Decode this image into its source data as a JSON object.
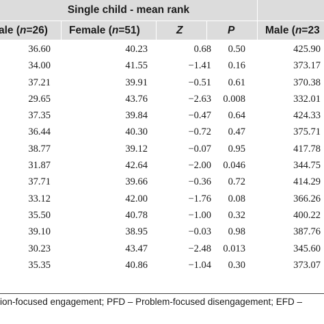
{
  "header": {
    "group_title": "Single child - mean rank",
    "columns": [
      "ale (n=26)",
      "Female (n=51)",
      "Z",
      "P",
      "Male (n=23"
    ]
  },
  "rows": [
    [
      "36.60",
      "40.23",
      "0.68",
      "0.50",
      "425.90"
    ],
    [
      "34.00",
      "41.55",
      "−1.41",
      "0.16",
      "373.17"
    ],
    [
      "37.21",
      "39.91",
      "−0.51",
      "0.61",
      "370.38"
    ],
    [
      "29.65",
      "43.76",
      "−2.63",
      "0.008",
      "332.01"
    ],
    [
      "37.35",
      "39.84",
      "−0.47",
      "0.64",
      "424.33"
    ],
    [
      "36.44",
      "40.30",
      "−0.72",
      "0.47",
      "375.71"
    ],
    [
      "38.77",
      "39.12",
      "−0.07",
      "0.95",
      "417.78"
    ],
    [
      "31.87",
      "42.64",
      "−2.00",
      "0.046",
      "344.75"
    ],
    [
      "37.71",
      "39.66",
      "−0.36",
      "0.72",
      "414.29"
    ],
    [
      "33.12",
      "42.00",
      "−1.76",
      "0.08",
      "366.26"
    ],
    [
      "35.50",
      "40.78",
      "−1.00",
      "0.32",
      "400.22"
    ],
    [
      "39.10",
      "38.95",
      "−0.03",
      "0.98",
      "387.76"
    ],
    [
      "30.23",
      "43.47",
      "−2.48",
      "0.013",
      "345.60"
    ],
    [
      "35.35",
      "40.86",
      "−1.04",
      "0.30",
      "373.07"
    ]
  ],
  "footnote": "ion-focused engagement; PFD – Problem-focused disengagement; EFD –"
}
